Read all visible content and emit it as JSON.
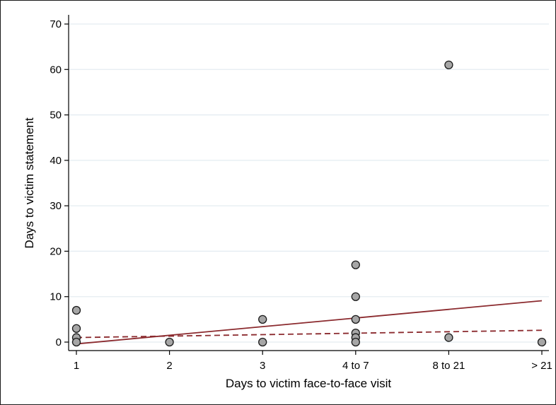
{
  "chart_data": {
    "type": "scatter",
    "title": "",
    "xlabel": "Days to victim face-to-face visit",
    "ylabel": "Days to victim statement",
    "categories": [
      "1",
      "2",
      "3",
      "4 to 7",
      "8 to 21",
      "> 21"
    ],
    "ylim": [
      0,
      70
    ],
    "yticks": [
      0,
      10,
      20,
      30,
      40,
      50,
      60,
      70
    ],
    "grid": true,
    "legend": "none",
    "points": [
      {
        "x": "1",
        "y": 7
      },
      {
        "x": "1",
        "y": 3
      },
      {
        "x": "1",
        "y": 1
      },
      {
        "x": "1",
        "y": 0
      },
      {
        "x": "2",
        "y": 0
      },
      {
        "x": "3",
        "y": 5
      },
      {
        "x": "3",
        "y": 0
      },
      {
        "x": "4 to 7",
        "y": 17
      },
      {
        "x": "4 to 7",
        "y": 10
      },
      {
        "x": "4 to 7",
        "y": 5
      },
      {
        "x": "4 to 7",
        "y": 2
      },
      {
        "x": "4 to 7",
        "y": 1
      },
      {
        "x": "4 to 7",
        "y": 0
      },
      {
        "x": "8 to 21",
        "y": 61
      },
      {
        "x": "8 to 21",
        "y": 1
      },
      {
        "x": "> 21",
        "y": 0
      }
    ],
    "lines": [
      {
        "style": "solid",
        "color": "#8b2a2e",
        "start": {
          "x": "1",
          "y": -0.4
        },
        "end": {
          "x": "> 21",
          "y": 9.1
        }
      },
      {
        "style": "dashed",
        "color": "#8b2a2e",
        "start": {
          "x": "1",
          "y": 1.0
        },
        "end": {
          "x": "> 21",
          "y": 2.6
        }
      }
    ],
    "colors": {
      "marker_fill": "#a6a6a6",
      "marker_stroke": "#1a1a1a",
      "fit_line": "#8b2a2e",
      "grid": "#e4ecf1",
      "axis": "#000000"
    }
  }
}
